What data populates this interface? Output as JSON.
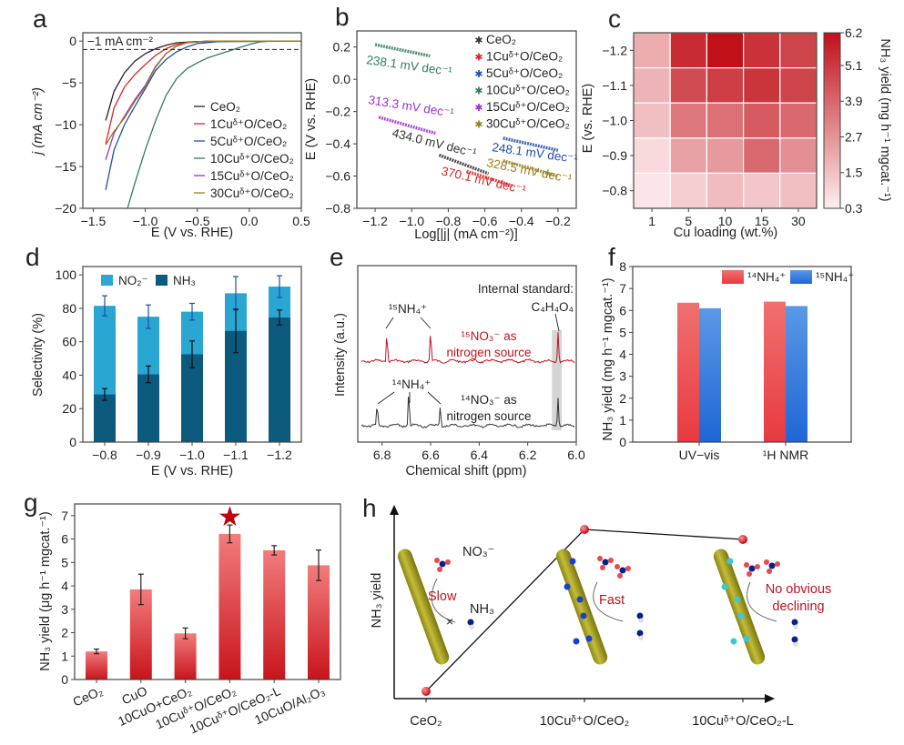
{
  "panel_letters": [
    "a",
    "b",
    "c",
    "d",
    "e",
    "f",
    "g",
    "h"
  ],
  "chart_data": [
    {
      "type": "line",
      "xlabel": "E (V vs. RHE)",
      "ylabel": "j (mA cm⁻²)",
      "xlim": [
        -1.6,
        0.5
      ],
      "ylim": [
        -20,
        1
      ],
      "xtick_labels": [
        "−1.5",
        "−1.0",
        "−0.5",
        "0.0",
        "0.5"
      ],
      "ytick_labels": [
        "0",
        "−5",
        "−10",
        "−15",
        "−20"
      ],
      "annotation": "−1 mA cm⁻²",
      "reference_line": -1,
      "legend_position": "bottom-right",
      "series": [
        {
          "name": "CeO₂",
          "color": "#222222",
          "points": [
            [
              -1.38,
              -9.5
            ],
            [
              -1.3,
              -6
            ],
            [
              -1.2,
              -3.8
            ],
            [
              -1.1,
              -2.4
            ],
            [
              -1.0,
              -1.5
            ],
            [
              -0.9,
              -0.9
            ],
            [
              -0.8,
              -0.5
            ],
            [
              -0.7,
              -0.2
            ],
            [
              -0.5,
              -0.05
            ],
            [
              0.5,
              0
            ]
          ]
        },
        {
          "name": "1Cuᵟ⁺O/CeO₂",
          "color": "#d62728",
          "points": [
            [
              -1.38,
              -12.3
            ],
            [
              -1.3,
              -8
            ],
            [
              -1.2,
              -5.5
            ],
            [
              -1.1,
              -4
            ],
            [
              -1.0,
              -2.8
            ],
            [
              -0.9,
              -1.7
            ],
            [
              -0.8,
              -0.9
            ],
            [
              -0.7,
              -0.4
            ],
            [
              -0.6,
              -0.15
            ],
            [
              -0.4,
              0
            ],
            [
              0.5,
              0
            ]
          ]
        },
        {
          "name": "5Cuᵟ⁺O/CeO₂",
          "color": "#1f4fa8",
          "points": [
            [
              -1.38,
              -17.8
            ],
            [
              -1.3,
              -13
            ],
            [
              -1.2,
              -10
            ],
            [
              -1.1,
              -7.8
            ],
            [
              -1.0,
              -5.7
            ],
            [
              -0.9,
              -3.5
            ],
            [
              -0.8,
              -2.2
            ],
            [
              -0.7,
              -1.3
            ],
            [
              -0.6,
              -0.7
            ],
            [
              -0.5,
              -0.3
            ],
            [
              -0.3,
              -0.05
            ],
            [
              0.5,
              0
            ]
          ]
        },
        {
          "name": "10Cuᵟ⁺O/CeO₂",
          "color": "#2e7d5a",
          "points": [
            [
              -1.17,
              -20
            ],
            [
              -1.1,
              -17
            ],
            [
              -1.0,
              -13
            ],
            [
              -0.9,
              -9.5
            ],
            [
              -0.8,
              -6.5
            ],
            [
              -0.7,
              -4.5
            ],
            [
              -0.6,
              -3.3
            ],
            [
              -0.5,
              -2.6
            ],
            [
              -0.4,
              -2
            ],
            [
              -0.3,
              -1.6
            ],
            [
              -0.2,
              -1.2
            ],
            [
              -0.1,
              -0.8
            ],
            [
              0,
              -0.4
            ],
            [
              0.1,
              -0.1
            ],
            [
              0.2,
              0
            ],
            [
              0.5,
              0
            ]
          ]
        },
        {
          "name": "15Cuᵟ⁺O/CeO₂",
          "color": "#9b30d0",
          "points": [
            [
              -1.38,
              -14.2
            ],
            [
              -1.3,
              -11
            ],
            [
              -1.2,
              -9
            ],
            [
              -1.1,
              -7
            ],
            [
              -1.0,
              -5.3
            ],
            [
              -0.9,
              -3
            ],
            [
              -0.8,
              -1.5
            ],
            [
              -0.7,
              -0.6
            ],
            [
              -0.6,
              -0.2
            ],
            [
              -0.4,
              0
            ],
            [
              0.5,
              0
            ]
          ]
        },
        {
          "name": "30Cuᵟ⁺O/CeO₂",
          "color": "#9a7d1a",
          "points": [
            [
              -1.38,
              -12.4
            ],
            [
              -1.3,
              -10.8
            ],
            [
              -1.2,
              -9.2
            ],
            [
              -1.1,
              -7.2
            ],
            [
              -1.0,
              -5.5
            ],
            [
              -0.9,
              -3.1
            ],
            [
              -0.8,
              -1.5
            ],
            [
              -0.7,
              -0.6
            ],
            [
              -0.6,
              -0.2
            ],
            [
              -0.4,
              0
            ],
            [
              0.5,
              0
            ]
          ]
        }
      ]
    },
    {
      "type": "line",
      "xlabel": "Log[|j| (mA cm⁻²)]",
      "ylabel": "E (V vs. RHE)",
      "xlim": [
        -1.3,
        -0.1
      ],
      "ylim": [
        -0.8,
        0.3
      ],
      "xtick_labels": [
        "−1.2",
        "−1.0",
        "−0.8",
        "−0.6",
        "−0.4",
        "−0.2"
      ],
      "ytick_labels": [
        "0.2",
        "0.0",
        "−0.2",
        "−0.4",
        "−0.6",
        "−0.8"
      ],
      "legend_position": "top-right",
      "series": [
        {
          "name": "CeO₂",
          "color": "#333333",
          "points": [
            [
              -0.85,
              -0.47
            ],
            [
              -0.58,
              -0.585
            ]
          ],
          "slope_label": "434.0 mV dec⁻¹"
        },
        {
          "name": "1Cuᵟ⁺O/CeO₂",
          "color": "#d62728",
          "points": [
            [
              -0.7,
              -0.57
            ],
            [
              -0.45,
              -0.66
            ]
          ],
          "slope_label": "370.1 mV dec⁻¹"
        },
        {
          "name": "5Cuᵟ⁺O/CeO₂",
          "color": "#1f4fa8",
          "points": [
            [
              -0.5,
              -0.365
            ],
            [
              -0.2,
              -0.44
            ]
          ],
          "slope_label": "248.1 mV dec⁻¹"
        },
        {
          "name": "10Cuᵟ⁺O/CeO₂",
          "color": "#2e7d5a",
          "points": [
            [
              -1.2,
              0.215
            ],
            [
              -0.9,
              0.145
            ]
          ],
          "slope_label": "238.1 mV dec⁻¹"
        },
        {
          "name": "15Cuᵟ⁺O/CeO₂",
          "color": "#9b30d0",
          "points": [
            [
              -1.18,
              -0.235
            ],
            [
              -0.87,
              -0.335
            ]
          ],
          "slope_label": "313.3 mV dec⁻¹"
        },
        {
          "name": "30Cuᵟ⁺O/CeO₂",
          "color": "#9a7d1a",
          "points": [
            [
              -0.5,
              -0.505
            ],
            [
              -0.2,
              -0.6
            ]
          ],
          "slope_label": "328.5 mV dec⁻¹"
        }
      ]
    },
    {
      "type": "heatmap",
      "xlabel": "Cu loading (wt.%)",
      "ylabel": "E (vs. RHE)",
      "x_categories": [
        "1",
        "5",
        "10",
        "15",
        "30"
      ],
      "y_categories": [
        "−1.2",
        "−1.1",
        "−1.0",
        "−0.9",
        "−0.8"
      ],
      "values": [
        [
          2.0,
          5.5,
          6.2,
          5.3,
          4.8
        ],
        [
          1.8,
          4.6,
          5.0,
          5.2,
          4.8
        ],
        [
          1.5,
          3.4,
          3.6,
          4.2,
          3.8
        ],
        [
          0.8,
          2.3,
          2.5,
          3.8,
          2.8
        ],
        [
          0.5,
          1.1,
          1.6,
          1.3,
          1.5
        ]
      ],
      "colorbar": {
        "label": "NH₃ yield (mg h⁻¹ mgcat.⁻¹)",
        "range": [
          0.3,
          6.2
        ],
        "tick_labels": [
          "0.3",
          "1.5",
          "2.7",
          "3.9",
          "5.1",
          "6.2"
        ],
        "color_low": "#fdeeee",
        "color_high": "#c0101a"
      }
    },
    {
      "type": "bar",
      "stacked": true,
      "xlabel": "E (V vs. RHE)",
      "ylabel": "Selectivity (%)",
      "ylim": [
        0,
        105
      ],
      "categories": [
        "−0.8",
        "−0.9",
        "−1.0",
        "−1.1",
        "−1.2"
      ],
      "ytick_labels": [
        "0",
        "20",
        "40",
        "60",
        "80",
        "100"
      ],
      "legend_position": "top-left",
      "series": [
        {
          "name": "NO₂⁻",
          "color": "#29a6d2",
          "total_values": [
            81.5,
            75,
            78,
            89,
            93
          ],
          "errors": [
            6,
            7,
            5,
            10,
            6.5
          ]
        },
        {
          "name": "NH₃",
          "color": "#0d5a7f",
          "values": [
            28.5,
            40.5,
            52.5,
            66.5,
            74.5
          ],
          "errors": [
            3.5,
            5,
            8,
            13,
            4.5
          ]
        }
      ]
    },
    {
      "type": "line",
      "xlabel": "Chemical shift (ppm)",
      "ylabel": "Intensity (a.u.)",
      "xlim": [
        6.9,
        6.0
      ],
      "xtick_labels": [
        "6.8",
        "6.6",
        "6.4",
        "6.2",
        "6.0"
      ],
      "highlight_band": [
        6.1,
        6.06
      ],
      "series": [
        {
          "name": "¹⁵NO₃⁻",
          "color": "#c0141c",
          "peaks": [
            [
              6.78,
              1.0
            ],
            [
              6.6,
              1.0
            ],
            [
              6.075,
              1.0
            ]
          ]
        },
        {
          "name": "¹⁴NO₃⁻",
          "color": "#333333",
          "peaks": [
            [
              6.82,
              0.7
            ],
            [
              6.69,
              1.15
            ],
            [
              6.56,
              0.7
            ],
            [
              6.075,
              0.95
            ]
          ]
        }
      ],
      "annotations": {
        "internal_standard": "Internal standard:",
        "internal_formula": "C₄H₄O₄",
        "nh4_15": "¹⁵NH₄⁺",
        "nh4_14": "¹⁴NH₄⁺",
        "src15_line1": "¹⁵NO₃⁻ as",
        "src15_line2": "nitrogen source",
        "src14_line1": "¹⁴NO₃⁻ as",
        "src14_line2": "nitrogen source"
      }
    },
    {
      "type": "bar",
      "ylabel": "NH₃ yield (mg h⁻¹ mgcat.⁻¹)",
      "ylim": [
        0,
        8
      ],
      "categories": [
        "UV−vis",
        "¹H NMR"
      ],
      "ytick_labels": [
        "0",
        "1",
        "2",
        "3",
        "4",
        "5",
        "6",
        "7",
        "8"
      ],
      "legend_position": "top-right",
      "series": [
        {
          "name": "¹⁴NH₄⁺",
          "color": "#ee4a4f",
          "values": [
            6.35,
            6.4
          ]
        },
        {
          "name": "¹⁵NH₄⁺",
          "color": "#2f78dc",
          "values": [
            6.1,
            6.2
          ]
        }
      ]
    },
    {
      "type": "bar",
      "ylabel": "NH₃ yield (μg h⁻¹ mgcat.⁻¹)",
      "ylim": [
        0,
        7.5
      ],
      "categories": [
        "CeO₂",
        "CuO",
        "10CuO+CeO₂",
        "10Cuᵟ⁺O/CeO₂",
        "10Cuᵟ⁺O/CeO₂-L",
        "10CuO/Al₂O₃"
      ],
      "values": [
        1.2,
        3.85,
        1.97,
        6.22,
        5.52,
        4.88
      ],
      "errors": [
        0.1,
        0.65,
        0.23,
        0.38,
        0.2,
        0.65
      ],
      "ytick_labels": [
        "0",
        "1",
        "2",
        "3",
        "4",
        "5",
        "6",
        "7"
      ],
      "highlight": "10Cuᵟ⁺O/CeO₂",
      "color": "#d9262c"
    }
  ],
  "schematic": {
    "ylabel": "NH₃ yield",
    "categories": [
      "CeO₂",
      "10Cuᵟ⁺O/CeO₂",
      "10Cuᵟ⁺O/CeO₂-L"
    ],
    "labels": {
      "no3": "NO₃⁻",
      "slow": "Slow",
      "nh3": "NH₃",
      "fast": "Fast",
      "no_obvious": "No obvious",
      "declining": "declining"
    }
  }
}
